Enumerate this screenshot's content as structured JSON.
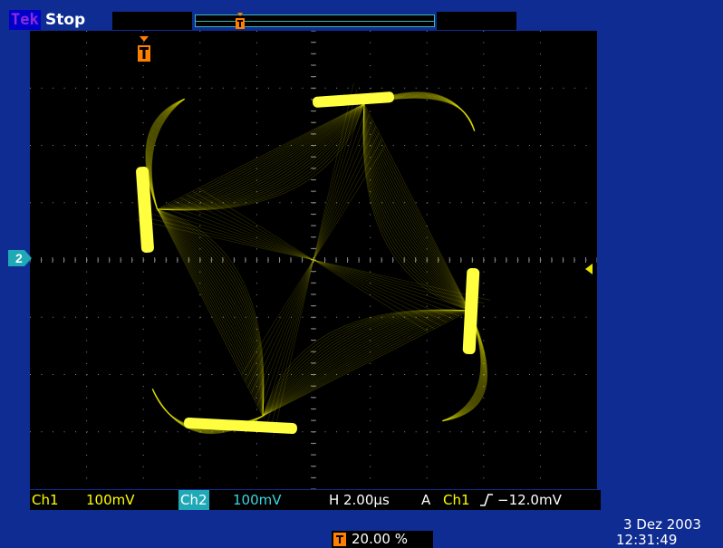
{
  "header": {
    "brand": "Tek",
    "acquisition_state": "Stop"
  },
  "display": {
    "mode": "XY",
    "trace_color": "#e6e600",
    "graticule_color": "#8a8a8a",
    "divisions": {
      "horizontal": 10,
      "vertical": 8
    }
  },
  "markers": {
    "channel_marker": "2",
    "trigger_marker_glyph": "T"
  },
  "readout": {
    "ch1_label": "Ch1",
    "ch1_scale": "100mV",
    "ch2_label": "Ch2",
    "ch2_scale": "100mV",
    "h_label": "H",
    "h_value": "2.00µs",
    "trigger_mode": "A",
    "trigger_source": "Ch1",
    "trigger_slope_icon": "rising-edge-icon",
    "trigger_level": "−12.0mV"
  },
  "trigger_position": "20.00 %",
  "datetime": {
    "date": "3 Dez 2003",
    "time": "12:31:49"
  },
  "colors": {
    "frame_blue": "#0e2c92",
    "ch1_yellow": "#ffff00",
    "ch2_cyan": "#1fa8b6",
    "trigger_orange": "#ff7f00"
  }
}
